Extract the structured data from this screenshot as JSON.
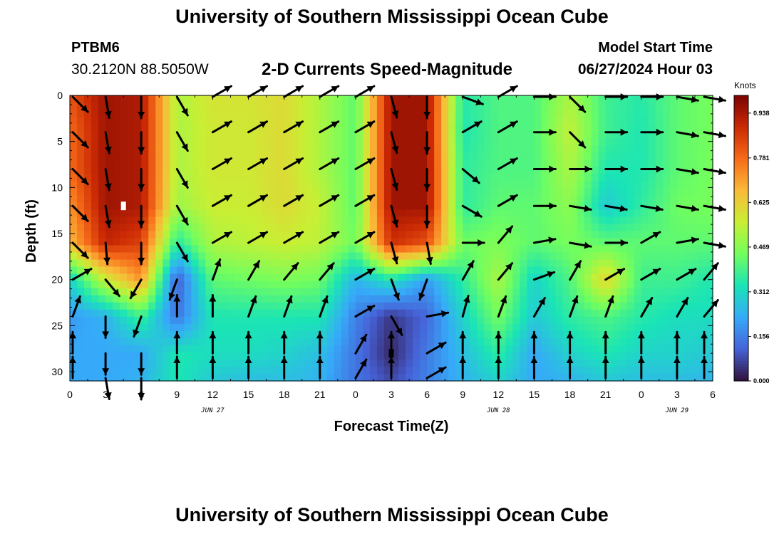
{
  "header": {
    "main_title": "University of Southern Mississippi Ocean Cube",
    "station": "PTBM6",
    "coords": "30.2120N  88.5050W",
    "subtitle": "2-D Currents Speed-Magnitude",
    "model_start_label": "Model Start Time",
    "model_start_value": "06/27/2024 Hour 03"
  },
  "footer": {
    "title": "University of Southern Mississippi Ocean Cube"
  },
  "colors": {
    "background": "#ffffff",
    "arrow": "#000000"
  },
  "chart_data": {
    "type": "heatmap",
    "xlabel": "Forecast Time(Z)",
    "ylabel": "Depth (ft)",
    "x_ticks": [
      "0",
      "3",
      "6",
      "9",
      "12",
      "15",
      "18",
      "21",
      "0",
      "3",
      "6",
      "9",
      "12",
      "15",
      "18",
      "21",
      "0",
      "3",
      "6"
    ],
    "x_range_hours": [
      0,
      54
    ],
    "y_ticks": [
      "0",
      "5",
      "10",
      "15",
      "20",
      "25",
      "30"
    ],
    "ylim": [
      0,
      31
    ],
    "y_inverted": true,
    "date_labels": [
      {
        "text": "JUN 27",
        "hour": 12
      },
      {
        "text": "JUN 28",
        "hour": 36
      },
      {
        "text": "JUN 29",
        "hour": 51
      }
    ],
    "colorbar": {
      "title": "Knots",
      "ticks": [
        "0.938",
        "0.781",
        "0.625",
        "0.469",
        "0.312",
        "0.156",
        "0.000"
      ],
      "range": [
        0,
        1.0
      ],
      "colormap": [
        "#30123b",
        "#4662d7",
        "#36aaf9",
        "#1ae4b6",
        "#72fe5e",
        "#c8ef34",
        "#faba39",
        "#f66b19",
        "#cb2a04",
        "#7a0403"
      ]
    },
    "speed_field_knots": {
      "hours": [
        0,
        3,
        6,
        9,
        12,
        15,
        18,
        21,
        24,
        27,
        30,
        33,
        36,
        39,
        42,
        45,
        48,
        51,
        54
      ],
      "depths_ft": [
        0,
        4,
        8,
        12,
        16,
        20,
        24,
        28,
        31
      ],
      "values": [
        [
          0.82,
          0.95,
          0.93,
          0.52,
          0.58,
          0.58,
          0.6,
          0.52,
          0.42,
          0.95,
          0.95,
          0.35,
          0.4,
          0.4,
          0.52,
          0.38,
          0.35,
          0.42,
          0.45
        ],
        [
          0.78,
          0.95,
          0.93,
          0.52,
          0.57,
          0.57,
          0.6,
          0.52,
          0.42,
          0.95,
          0.95,
          0.34,
          0.4,
          0.4,
          0.55,
          0.38,
          0.34,
          0.42,
          0.45
        ],
        [
          0.78,
          0.95,
          0.93,
          0.52,
          0.57,
          0.57,
          0.6,
          0.52,
          0.42,
          0.95,
          0.95,
          0.36,
          0.4,
          0.4,
          0.52,
          0.34,
          0.34,
          0.42,
          0.45
        ],
        [
          0.72,
          0.95,
          0.93,
          0.5,
          0.56,
          0.56,
          0.6,
          0.55,
          0.42,
          0.95,
          0.95,
          0.36,
          0.42,
          0.42,
          0.48,
          0.28,
          0.36,
          0.44,
          0.45
        ],
        [
          0.66,
          0.9,
          0.85,
          0.35,
          0.52,
          0.54,
          0.56,
          0.54,
          0.44,
          0.88,
          0.82,
          0.44,
          0.46,
          0.42,
          0.45,
          0.42,
          0.42,
          0.42,
          0.42
        ],
        [
          0.3,
          0.56,
          0.72,
          0.1,
          0.42,
          0.44,
          0.46,
          0.44,
          0.24,
          0.34,
          0.2,
          0.36,
          0.52,
          0.3,
          0.4,
          0.62,
          0.38,
          0.38,
          0.34
        ],
        [
          0.2,
          0.24,
          0.38,
          0.14,
          0.34,
          0.34,
          0.34,
          0.34,
          0.16,
          0.05,
          0.12,
          0.3,
          0.45,
          0.28,
          0.36,
          0.4,
          0.35,
          0.32,
          0.32
        ],
        [
          0.22,
          0.22,
          0.22,
          0.34,
          0.32,
          0.32,
          0.3,
          0.26,
          0.14,
          0.03,
          0.15,
          0.26,
          0.36,
          0.22,
          0.3,
          0.34,
          0.3,
          0.3,
          0.28
        ],
        [
          0.22,
          0.22,
          0.24,
          0.34,
          0.28,
          0.26,
          0.26,
          0.24,
          0.14,
          0.08,
          0.16,
          0.24,
          0.3,
          0.22,
          0.24,
          0.28,
          0.26,
          0.26,
          0.24
        ]
      ]
    },
    "direction_field_deg": {
      "hours": [
        0,
        3,
        6,
        9,
        12,
        15,
        18,
        21,
        24,
        27,
        30,
        33,
        36,
        39,
        42,
        45,
        48,
        51,
        54
      ],
      "depths_ft": [
        0,
        4,
        8,
        12,
        16,
        20,
        24,
        28,
        31
      ],
      "values": [
        [
          135,
          170,
          180,
          150,
          60,
          60,
          60,
          60,
          60,
          165,
          180,
          110,
          60,
          90,
          135,
          90,
          90,
          100,
          100
        ],
        [
          135,
          170,
          180,
          150,
          60,
          60,
          60,
          60,
          60,
          165,
          180,
          60,
          60,
          90,
          135,
          90,
          90,
          100,
          100
        ],
        [
          135,
          170,
          180,
          150,
          60,
          60,
          60,
          60,
          60,
          165,
          180,
          130,
          60,
          90,
          90,
          90,
          90,
          100,
          100
        ],
        [
          135,
          170,
          180,
          150,
          60,
          60,
          60,
          60,
          60,
          165,
          180,
          120,
          60,
          90,
          100,
          100,
          100,
          100,
          100
        ],
        [
          135,
          175,
          180,
          150,
          60,
          60,
          60,
          60,
          60,
          165,
          170,
          90,
          40,
          80,
          100,
          90,
          60,
          80,
          100
        ],
        [
          60,
          140,
          210,
          200,
          20,
          30,
          40,
          40,
          60,
          160,
          200,
          30,
          40,
          70,
          30,
          60,
          60,
          60,
          40
        ],
        [
          20,
          180,
          200,
          0,
          0,
          20,
          20,
          20,
          60,
          150,
          80,
          15,
          20,
          30,
          20,
          20,
          30,
          30,
          40
        ],
        [
          0,
          180,
          180,
          0,
          0,
          0,
          0,
          0,
          30,
          0,
          60,
          0,
          0,
          0,
          0,
          0,
          0,
          0,
          0
        ],
        [
          0,
          170,
          180,
          0,
          0,
          0,
          0,
          0,
          30,
          0,
          60,
          0,
          0,
          0,
          0,
          0,
          0,
          0,
          0
        ]
      ]
    },
    "markers": [
      {
        "hour": 4.5,
        "depth_ft": 12,
        "color": "#ffffff"
      },
      {
        "hour": 27,
        "depth_ft": 28,
        "color": "#000000"
      }
    ]
  }
}
